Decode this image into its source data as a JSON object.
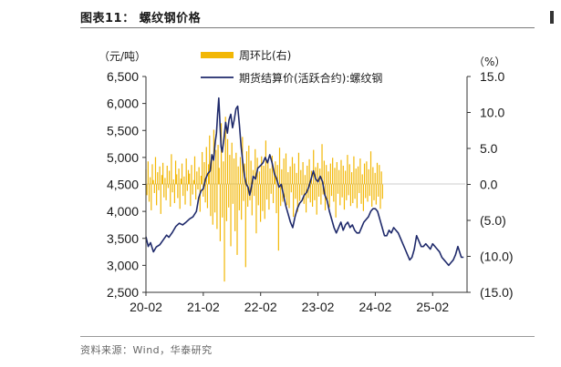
{
  "header": {
    "title": "图表11：  螺纹钢价格"
  },
  "footer": {
    "source": "资料来源：Wind，华泰研究"
  },
  "chart_data": {
    "type": "line+bar",
    "title": "螺纹钢价格",
    "left_axis": {
      "unit": "（元/吨）",
      "min": 2500,
      "max": 6500,
      "ticks": [
        6500,
        6000,
        5500,
        5000,
        4500,
        4000,
        3500,
        3000,
        2500
      ],
      "tick_labels": [
        "6,500",
        "6,000",
        "5,500",
        "5,000",
        "4,500",
        "4,000",
        "3,500",
        "3,000",
        "2,500"
      ]
    },
    "right_axis": {
      "unit": "（%）",
      "min": -15,
      "max": 15,
      "ticks": [
        15,
        10,
        5,
        0,
        -5,
        -10,
        -15
      ],
      "tick_labels": [
        "15.0",
        "10.0",
        "5.0",
        "0.0",
        "(5.0)",
        "(10.0)",
        "(15.0)"
      ]
    },
    "x_axis": {
      "range": [
        2020.0,
        2025.6
      ],
      "ticks": [
        2020.0,
        2021.0,
        2022.0,
        2023.0,
        2024.0,
        2025.0
      ],
      "tick_labels": [
        "20-02",
        "21-02",
        "22-02",
        "23-02",
        "24-02",
        "25-02"
      ]
    },
    "legend": {
      "position": "top",
      "entries": [
        {
          "name": "周环比(右)",
          "kind": "bar",
          "color": "#f2b705"
        },
        {
          "name": "期货结算价(活跃合约):螺纹钢",
          "kind": "line",
          "color": "#1f2a6b"
        }
      ]
    },
    "series": [
      {
        "name": "期货结算价(活跃合约):螺纹钢",
        "axis": "left",
        "color": "#1f2a6b",
        "points": [
          [
            2020.0,
            3530
          ],
          [
            2020.04,
            3350
          ],
          [
            2020.08,
            3420
          ],
          [
            2020.13,
            3250
          ],
          [
            2020.18,
            3340
          ],
          [
            2020.24,
            3380
          ],
          [
            2020.3,
            3470
          ],
          [
            2020.36,
            3560
          ],
          [
            2020.4,
            3520
          ],
          [
            2020.46,
            3610
          ],
          [
            2020.52,
            3720
          ],
          [
            2020.58,
            3780
          ],
          [
            2020.64,
            3750
          ],
          [
            2020.7,
            3800
          ],
          [
            2020.76,
            3860
          ],
          [
            2020.82,
            3900
          ],
          [
            2020.88,
            4000
          ],
          [
            2020.92,
            4250
          ],
          [
            2020.96,
            4380
          ],
          [
            2021.0,
            4420
          ],
          [
            2021.04,
            4600
          ],
          [
            2021.08,
            4700
          ],
          [
            2021.12,
            4750
          ],
          [
            2021.15,
            5050
          ],
          [
            2021.18,
            4950
          ],
          [
            2021.21,
            5300
          ],
          [
            2021.23,
            5450
          ],
          [
            2021.25,
            5800
          ],
          [
            2021.27,
            6100
          ],
          [
            2021.29,
            5650
          ],
          [
            2021.31,
            5200
          ],
          [
            2021.33,
            5100
          ],
          [
            2021.36,
            5350
          ],
          [
            2021.39,
            5650
          ],
          [
            2021.42,
            5450
          ],
          [
            2021.45,
            5700
          ],
          [
            2021.48,
            5800
          ],
          [
            2021.51,
            5550
          ],
          [
            2021.54,
            5700
          ],
          [
            2021.57,
            5900
          ],
          [
            2021.6,
            5950
          ],
          [
            2021.63,
            5600
          ],
          [
            2021.66,
            5200
          ],
          [
            2021.69,
            4900
          ],
          [
            2021.72,
            4650
          ],
          [
            2021.75,
            4500
          ],
          [
            2021.78,
            4450
          ],
          [
            2021.81,
            4300
          ],
          [
            2021.84,
            4450
          ],
          [
            2021.87,
            4650
          ],
          [
            2021.91,
            4600
          ],
          [
            2021.95,
            4800
          ],
          [
            2022.0,
            4850
          ],
          [
            2022.04,
            4900
          ],
          [
            2022.08,
            5000
          ],
          [
            2022.12,
            4900
          ],
          [
            2022.16,
            5050
          ],
          [
            2022.2,
            4900
          ],
          [
            2022.24,
            4700
          ],
          [
            2022.28,
            4600
          ],
          [
            2022.32,
            4450
          ],
          [
            2022.36,
            4500
          ],
          [
            2022.4,
            4300
          ],
          [
            2022.44,
            4100
          ],
          [
            2022.48,
            3950
          ],
          [
            2022.52,
            3800
          ],
          [
            2022.56,
            3700
          ],
          [
            2022.6,
            3900
          ],
          [
            2022.64,
            4050
          ],
          [
            2022.68,
            4150
          ],
          [
            2022.72,
            4200
          ],
          [
            2022.76,
            4300
          ],
          [
            2022.8,
            4350
          ],
          [
            2022.84,
            4450
          ],
          [
            2022.88,
            4600
          ],
          [
            2022.92,
            4750
          ],
          [
            2022.96,
            4600
          ],
          [
            2023.0,
            4550
          ],
          [
            2023.04,
            4650
          ],
          [
            2023.08,
            4550
          ],
          [
            2023.12,
            4300
          ],
          [
            2023.16,
            4200
          ],
          [
            2023.2,
            4000
          ],
          [
            2023.24,
            3850
          ],
          [
            2023.28,
            3700
          ],
          [
            2023.32,
            3600
          ],
          [
            2023.36,
            3700
          ],
          [
            2023.4,
            3800
          ],
          [
            2023.44,
            3650
          ],
          [
            2023.48,
            3750
          ],
          [
            2023.52,
            3800
          ],
          [
            2023.56,
            3700
          ],
          [
            2023.6,
            3750
          ],
          [
            2023.64,
            3650
          ],
          [
            2023.68,
            3600
          ],
          [
            2023.72,
            3600
          ],
          [
            2023.76,
            3700
          ],
          [
            2023.8,
            3800
          ],
          [
            2023.84,
            3850
          ],
          [
            2023.88,
            3900
          ],
          [
            2023.92,
            4000
          ],
          [
            2023.96,
            4050
          ],
          [
            2024.0,
            4050
          ],
          [
            2024.04,
            4000
          ],
          [
            2024.08,
            3850
          ],
          [
            2024.12,
            3700
          ],
          [
            2024.16,
            3550
          ],
          [
            2024.2,
            3550
          ],
          [
            2024.24,
            3650
          ],
          [
            2024.28,
            3600
          ],
          [
            2024.32,
            3700
          ],
          [
            2024.36,
            3650
          ],
          [
            2024.4,
            3600
          ],
          [
            2024.44,
            3500
          ],
          [
            2024.48,
            3400
          ],
          [
            2024.52,
            3300
          ],
          [
            2024.56,
            3200
          ],
          [
            2024.6,
            3100
          ],
          [
            2024.64,
            3150
          ],
          [
            2024.68,
            3300
          ],
          [
            2024.72,
            3550
          ],
          [
            2024.76,
            3450
          ],
          [
            2024.8,
            3350
          ],
          [
            2024.84,
            3350
          ],
          [
            2024.88,
            3400
          ],
          [
            2024.92,
            3350
          ],
          [
            2024.96,
            3300
          ],
          [
            2025.0,
            3400
          ],
          [
            2025.04,
            3350
          ],
          [
            2025.08,
            3300
          ],
          [
            2025.12,
            3250
          ],
          [
            2025.16,
            3150
          ],
          [
            2025.2,
            3100
          ],
          [
            2025.24,
            3050
          ],
          [
            2025.28,
            3000
          ],
          [
            2025.32,
            3050
          ],
          [
            2025.36,
            3100
          ],
          [
            2025.4,
            3200
          ],
          [
            2025.44,
            3350
          ],
          [
            2025.47,
            3250
          ],
          [
            2025.5,
            3150
          ],
          [
            2025.54,
            3150
          ]
        ]
      },
      {
        "name": "周环比(右)",
        "axis": "right",
        "color": "#f2b705",
        "x_start": 2020.0,
        "x_step": 0.0185,
        "values": [
          2.1,
          -1.5,
          3.2,
          -2.4,
          1.0,
          -3.6,
          2.8,
          0.6,
          -1.2,
          3.8,
          -2.9,
          1.7,
          -0.8,
          2.5,
          -4.1,
          1.3,
          3.0,
          -1.8,
          0.9,
          -2.2,
          2.6,
          -0.5,
          1.9,
          -3.1,
          4.2,
          -1.1,
          0.7,
          -2.6,
          3.3,
          1.4,
          -1.9,
          2.2,
          -3.4,
          0.8,
          2.9,
          -1.6,
          1.1,
          -2.8,
          3.6,
          -0.9,
          2.0,
          1.5,
          -3.0,
          2.7,
          -1.4,
          0.6,
          3.9,
          -2.1,
          1.8,
          -0.7,
          2.4,
          -3.8,
          1.2,
          4.5,
          -1.7,
          3.1,
          -2.5,
          5.2,
          -3.3,
          2.8,
          6.8,
          -4.4,
          3.5,
          -5.6,
          7.6,
          -3.9,
          4.8,
          -6.2,
          5.5,
          2.3,
          -7.9,
          8.5,
          -4.6,
          3.2,
          -13.5,
          9.4,
          -5.1,
          6.3,
          -3.2,
          4.1,
          -8.6,
          5.8,
          -2.7,
          3.6,
          -6.5,
          4.4,
          -9.8,
          2.5,
          -3.6,
          3.8,
          -4.9,
          6.6,
          -2.3,
          2.9,
          -11.5,
          4.6,
          -3.1,
          5.4,
          -2.2,
          3.3,
          -4.3,
          2.0,
          -1.6,
          4.9,
          -6.8,
          3.7,
          -2.9,
          1.8,
          -5.2,
          3.9,
          -3.7,
          2.6,
          -4.8,
          6.1,
          -2.1,
          3.4,
          -3.5,
          2.2,
          -1.3,
          4.0,
          -2.6,
          1.5,
          3.2,
          -4.0,
          2.7,
          -9.2,
          5.1,
          -3.0,
          2.1,
          -2.4,
          3.6,
          -1.8,
          4.3,
          -2.9,
          1.7,
          -3.3,
          2.5,
          -1.1,
          3.8,
          -4.5,
          2.9,
          -2.0,
          1.6,
          -3.8,
          4.4,
          -2.3,
          2.0,
          -1.5,
          3.1,
          -2.7,
          1.3,
          -3.9,
          2.6,
          -1.9,
          3.5,
          -2.5,
          1.9,
          -3.1,
          4.8,
          -2.2,
          2.4,
          -4.2,
          3.0,
          -1.7,
          2.2,
          -2.8,
          5.6,
          -1.4,
          3.3,
          -3.6,
          2.7,
          -2.1,
          1.8,
          -3.2,
          2.9,
          -1.6,
          3.7,
          -2.4,
          2.3,
          -4.6,
          3.1,
          -1.3,
          2.0,
          -2.9,
          3.4,
          -1.8,
          2.6,
          -3.5,
          1.9,
          -2.2,
          4.1,
          -1.5,
          2.8,
          -3.0,
          1.7,
          -2.6,
          3.9,
          -2.0,
          2.2,
          -3.3,
          2.5,
          -1.2,
          3.6,
          -2.7,
          1.4,
          -3.7,
          2.9,
          -1.9,
          3.2,
          -2.4,
          2.1,
          -1.6,
          4.6,
          -3.1,
          2.4,
          -2.2,
          1.6,
          -2.8,
          3.0,
          -1.7,
          2.7,
          -3.4,
          1.8,
          -2.0
        ]
      }
    ]
  }
}
